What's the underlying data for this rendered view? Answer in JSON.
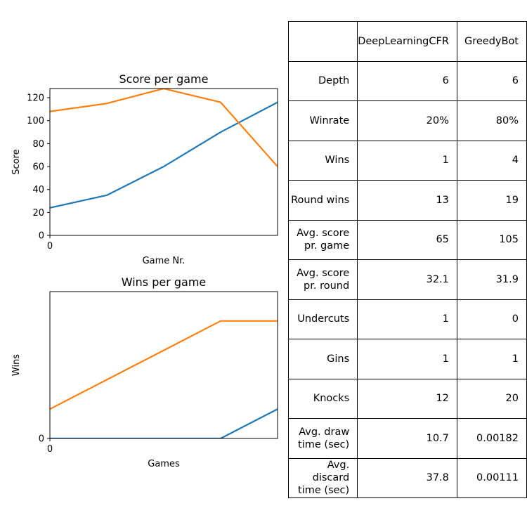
{
  "chart_data": [
    {
      "type": "line",
      "title": "Score per game",
      "xlabel": "Game Nr.",
      "ylabel": "Score",
      "x": [
        0,
        1,
        2,
        3,
        4
      ],
      "x_ticks": [
        "0"
      ],
      "xlim": [
        0,
        4
      ],
      "ylim": [
        0,
        128
      ],
      "y_ticks": [
        0,
        20,
        40,
        60,
        80,
        100,
        120
      ],
      "grid": false,
      "series": [
        {
          "color": "#1f77b4",
          "values": [
            24,
            35,
            60,
            90,
            116
          ]
        },
        {
          "color": "#ff7f0e",
          "values": [
            108,
            115,
            128,
            116,
            60
          ]
        }
      ]
    },
    {
      "type": "line",
      "title": "Wins per game",
      "xlabel": "Games",
      "ylabel": "Wins",
      "x": [
        0,
        1,
        2,
        3,
        4
      ],
      "x_ticks": [
        "0"
      ],
      "xlim": [
        0,
        4
      ],
      "ylim": [
        0,
        5
      ],
      "y_ticks": [
        0
      ],
      "grid": false,
      "series": [
        {
          "color": "#1f77b4",
          "values": [
            0,
            0,
            0,
            0,
            1
          ]
        },
        {
          "color": "#ff7f0e",
          "values": [
            1,
            2,
            3,
            4,
            4
          ]
        }
      ]
    }
  ],
  "table": {
    "header": [
      "",
      "DeepLearningCFR",
      "GreedyBot"
    ],
    "rows": [
      [
        "Depth",
        "6",
        "6"
      ],
      [
        "Winrate",
        "20%",
        "80%"
      ],
      [
        "Wins",
        "1",
        "4"
      ],
      [
        "Round wins",
        "13",
        "19"
      ],
      [
        "Avg. score\npr. game",
        "65",
        "105"
      ],
      [
        "Avg. score\npr. round",
        "32.1",
        "31.9"
      ],
      [
        "Undercuts",
        "1",
        "0"
      ],
      [
        "Gins",
        "1",
        "1"
      ],
      [
        "Knocks",
        "12",
        "20"
      ],
      [
        "Avg. draw\ntime (sec)",
        "10.7",
        "0.00182"
      ],
      [
        "Avg. discard\ntime (sec)",
        "37.8",
        "0.00111"
      ]
    ]
  }
}
